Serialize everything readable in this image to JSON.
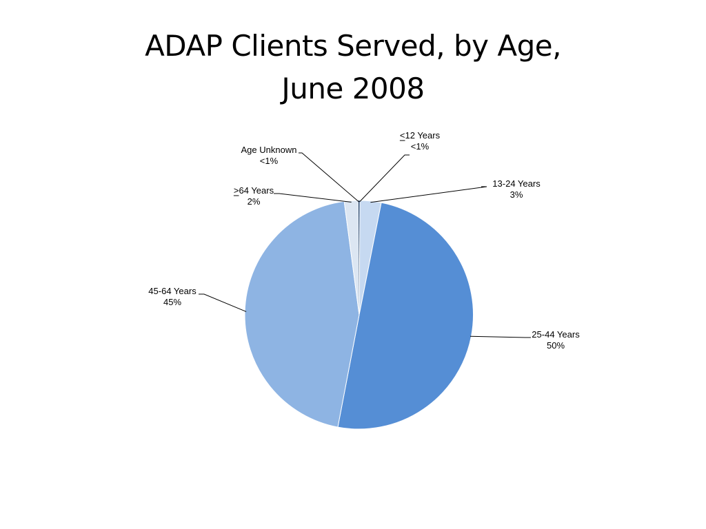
{
  "title": {
    "line1": "ADAP Clients Served, by Age,",
    "line2": "June 2008"
  },
  "chart_data": {
    "type": "pie",
    "title": "ADAP Clients Served, by Age, June 2008",
    "start": "12 o'clock",
    "direction": "clockwise",
    "slices": [
      {
        "label": "<12 Years",
        "underline_first_char": true,
        "value_label": "<1%",
        "value": 0.1,
        "color": "#3a5f8f"
      },
      {
        "label": "13-24 Years",
        "value_label": "3%",
        "value": 3,
        "color": "#c6d9f1"
      },
      {
        "label": "25-44 Years",
        "value_label": "50%",
        "value": 50,
        "color": "#558ed5"
      },
      {
        "label": "45-64 Years",
        "value_label": "45%",
        "value": 45,
        "color": "#8eb4e3"
      },
      {
        "label": ">64 Years",
        "underline_first_char": true,
        "value_label": "2%",
        "value": 2,
        "color": "#dce6f2"
      },
      {
        "label": "Age Unknown",
        "value_label": "<1%",
        "value": 0.1,
        "color": "#17375e"
      }
    ]
  }
}
